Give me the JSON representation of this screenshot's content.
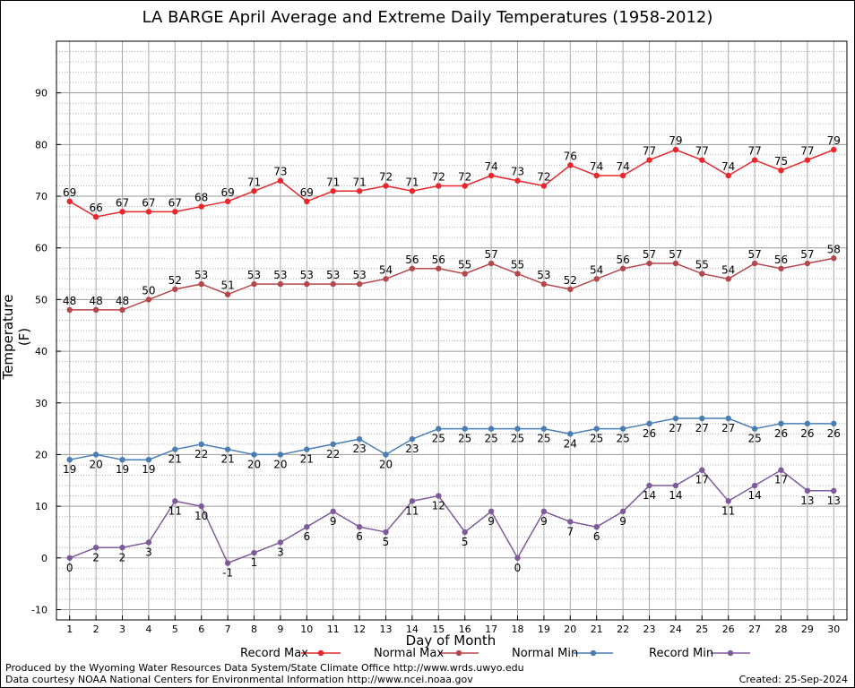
{
  "chart_data": {
    "type": "line",
    "title": "LA BARGE April Average and Extreme Daily Temperatures (1958-2012)",
    "xlabel": "Day of Month",
    "ylabel": "Temperature (F)",
    "ylim": [
      -12,
      100
    ],
    "yticks": [
      -10,
      0,
      10,
      20,
      30,
      40,
      50,
      60,
      70,
      80,
      90
    ],
    "x": [
      1,
      2,
      3,
      4,
      5,
      6,
      7,
      8,
      9,
      10,
      11,
      12,
      13,
      14,
      15,
      16,
      17,
      18,
      19,
      20,
      21,
      22,
      23,
      24,
      25,
      26,
      27,
      28,
      29,
      30
    ],
    "grid": true,
    "legend_position": "bottom",
    "series": [
      {
        "name": "Record Max",
        "color": "#e8262b",
        "values": [
          69,
          66,
          67,
          67,
          67,
          68,
          69,
          71,
          73,
          69,
          71,
          71,
          72,
          71,
          72,
          72,
          74,
          73,
          72,
          76,
          74,
          74,
          77,
          79,
          77,
          74,
          77,
          75,
          77,
          79
        ]
      },
      {
        "name": "Normal Max",
        "color": "#b5474b",
        "values": [
          48,
          48,
          48,
          50,
          52,
          53,
          51,
          53,
          53,
          53,
          53,
          53,
          54,
          56,
          56,
          55,
          57,
          55,
          53,
          52,
          54,
          56,
          57,
          57,
          55,
          54,
          57,
          56,
          57,
          58
        ]
      },
      {
        "name": "Normal Min",
        "color": "#4a7db3",
        "values": [
          19,
          20,
          19,
          19,
          21,
          22,
          21,
          20,
          20,
          21,
          22,
          23,
          20,
          23,
          25,
          25,
          25,
          25,
          25,
          24,
          25,
          25,
          26,
          27,
          27,
          27,
          25,
          26,
          26,
          26
        ]
      },
      {
        "name": "Record Min",
        "color": "#7e5a9b",
        "values": [
          0,
          2,
          2,
          3,
          11,
          10,
          -1,
          1,
          3,
          6,
          9,
          6,
          5,
          11,
          12,
          5,
          9,
          0,
          9,
          7,
          6,
          9,
          14,
          14,
          17,
          11,
          14,
          17,
          13,
          13
        ]
      }
    ]
  },
  "footer": {
    "produced_by": "Produced by the Wyoming Water Resources Data System/State Climate Office http://www.wrds.uwyo.edu",
    "courtesy": "Data courtesy NOAA National Centers for Environmental Information http://www.ncei.noaa.gov",
    "created": "Created:  25-Sep-2024"
  }
}
